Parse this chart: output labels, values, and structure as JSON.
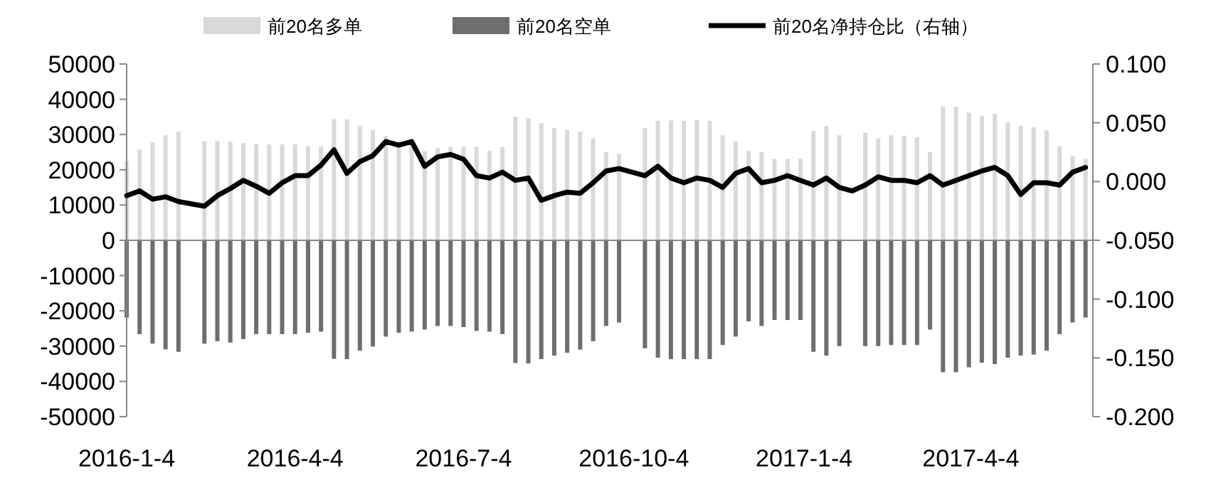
{
  "chart_data": {
    "type": "bar",
    "x": [
      "2016-01-04",
      "2016-01-11",
      "2016-01-18",
      "2016-01-25",
      "2016-02-01",
      "2016-02-08",
      "2016-02-15",
      "2016-02-22",
      "2016-02-29",
      "2016-03-07",
      "2016-03-14",
      "2016-03-21",
      "2016-03-28",
      "2016-04-04",
      "2016-04-11",
      "2016-04-18",
      "2016-04-25",
      "2016-05-02",
      "2016-05-09",
      "2016-05-16",
      "2016-05-23",
      "2016-05-30",
      "2016-06-06",
      "2016-06-13",
      "2016-06-20",
      "2016-06-27",
      "2016-07-04",
      "2016-07-11",
      "2016-07-18",
      "2016-07-25",
      "2016-08-01",
      "2016-08-08",
      "2016-08-15",
      "2016-08-22",
      "2016-08-29",
      "2016-09-05",
      "2016-09-12",
      "2016-09-19",
      "2016-09-26",
      "2016-10-03",
      "2016-10-10",
      "2016-10-17",
      "2016-10-24",
      "2016-10-31",
      "2016-11-07",
      "2016-11-14",
      "2016-11-21",
      "2016-11-28",
      "2016-12-05",
      "2016-12-12",
      "2016-12-19",
      "2016-12-26",
      "2017-01-02",
      "2017-01-09",
      "2017-01-16",
      "2017-01-23",
      "2017-01-30",
      "2017-02-06",
      "2017-02-13",
      "2017-02-20",
      "2017-02-27",
      "2017-03-06",
      "2017-03-13",
      "2017-03-20",
      "2017-03-27",
      "2017-04-03",
      "2017-04-10",
      "2017-04-17",
      "2017-04-24",
      "2017-05-01",
      "2017-05-08",
      "2017-05-15",
      "2017-05-22",
      "2017-05-29",
      "2017-06-05"
    ],
    "series": [
      {
        "name": "前20名多单",
        "color": "#d9d9d9",
        "values": [
          22400,
          25700,
          27800,
          29800,
          30800,
          null,
          28100,
          28100,
          28000,
          27600,
          27200,
          27200,
          27200,
          27200,
          26700,
          26500,
          34400,
          34300,
          32500,
          31300,
          29600,
          27700,
          26500,
          25300,
          26100,
          26500,
          26500,
          26500,
          25400,
          26500,
          35100,
          34700,
          33200,
          31900,
          31300,
          30800,
          28900,
          25100,
          24500,
          null,
          31900,
          33900,
          34000,
          33900,
          34100,
          33900,
          29800,
          28000,
          25400,
          25100,
          23100,
          23100,
          23100,
          31000,
          32400,
          29800,
          null,
          30500,
          28900,
          29800,
          29700,
          29200,
          25100,
          37900,
          37900,
          36200,
          35200,
          35900,
          33500,
          32500,
          32100,
          31200,
          26700,
          23800,
          23100
        ]
      },
      {
        "name": "前20名空单",
        "color": "#6e6e6e",
        "values": [
          -21900,
          -26600,
          -29300,
          -30900,
          -31600,
          null,
          -29300,
          -28600,
          -29000,
          -28000,
          -26600,
          -26600,
          -26600,
          -26600,
          -26200,
          -25900,
          -33600,
          -33700,
          -31300,
          -30100,
          -27300,
          -26200,
          -25900,
          -25300,
          -24300,
          -24300,
          -24600,
          -25700,
          -25900,
          -26600,
          -34800,
          -34900,
          -33700,
          -32700,
          -31900,
          -31000,
          -28600,
          -24300,
          -23300,
          null,
          -30600,
          -33300,
          -33700,
          -33700,
          -33700,
          -33700,
          -29700,
          -27300,
          -23000,
          -24300,
          -22600,
          -22600,
          -22600,
          -31600,
          -32700,
          -30000,
          null,
          -30000,
          -30000,
          -29700,
          -29700,
          -29700,
          -25300,
          -37400,
          -37400,
          -36000,
          -34700,
          -35100,
          -33300,
          -32700,
          -32400,
          -31300,
          -26600,
          -23300,
          -21900
        ]
      },
      {
        "name": "前20名净持仓比（右轴）",
        "type": "line",
        "axis": "y2",
        "color": "#000000",
        "values": [
          -0.012,
          -0.008,
          -0.015,
          -0.013,
          -0.017,
          -0.019,
          -0.021,
          -0.012,
          -0.006,
          0.001,
          -0.004,
          -0.01,
          -0.001,
          0.005,
          0.005,
          0.014,
          0.027,
          0.007,
          0.017,
          0.022,
          0.034,
          0.031,
          0.034,
          0.013,
          0.021,
          0.023,
          0.019,
          0.005,
          0.003,
          0.008,
          0.001,
          0.003,
          -0.016,
          -0.012,
          -0.009,
          -0.01,
          -0.001,
          0.009,
          0.011,
          0.008,
          0.005,
          0.013,
          0.003,
          -0.001,
          0.003,
          0.001,
          -0.005,
          0.007,
          0.011,
          -0.001,
          0.001,
          0.005,
          0.001,
          -0.003,
          0.003,
          -0.005,
          -0.008,
          -0.003,
          0.004,
          0.001,
          0.001,
          -0.001,
          0.005,
          -0.003,
          0.001,
          0.005,
          0.009,
          0.012,
          0.005,
          -0.011,
          -0.001,
          -0.001,
          -0.003,
          0.008,
          0.012
        ]
      }
    ],
    "xlim": [
      "2016-01-04",
      "2017-06-09"
    ],
    "xticks": [
      {
        "value": "2016-01-04",
        "label": "2016-1-4"
      },
      {
        "value": "2016-04-04",
        "label": "2016-4-4"
      },
      {
        "value": "2016-07-04",
        "label": "2016-7-4"
      },
      {
        "value": "2016-10-04",
        "label": "2016-10-4"
      },
      {
        "value": "2017-01-04",
        "label": "2017-1-4"
      },
      {
        "value": "2017-04-04",
        "label": "2017-4-4"
      }
    ],
    "ylim": [
      -50000,
      50000
    ],
    "yticks": [
      -50000,
      -40000,
      -30000,
      -20000,
      -10000,
      0,
      10000,
      20000,
      30000,
      40000,
      50000
    ],
    "y2lim": [
      -0.2,
      0.1
    ],
    "y2ticks": [
      {
        "value": -0.2,
        "label": "-0.200"
      },
      {
        "value": -0.15,
        "label": "-0.150"
      },
      {
        "value": -0.1,
        "label": "-0.100"
      },
      {
        "value": -0.05,
        "label": "-0.050"
      },
      {
        "value": 0,
        "label": "0.000"
      },
      {
        "value": 0.05,
        "label": "0.050"
      },
      {
        "value": 0.1,
        "label": "0.100"
      }
    ],
    "stacked": true,
    "legend": "top"
  }
}
